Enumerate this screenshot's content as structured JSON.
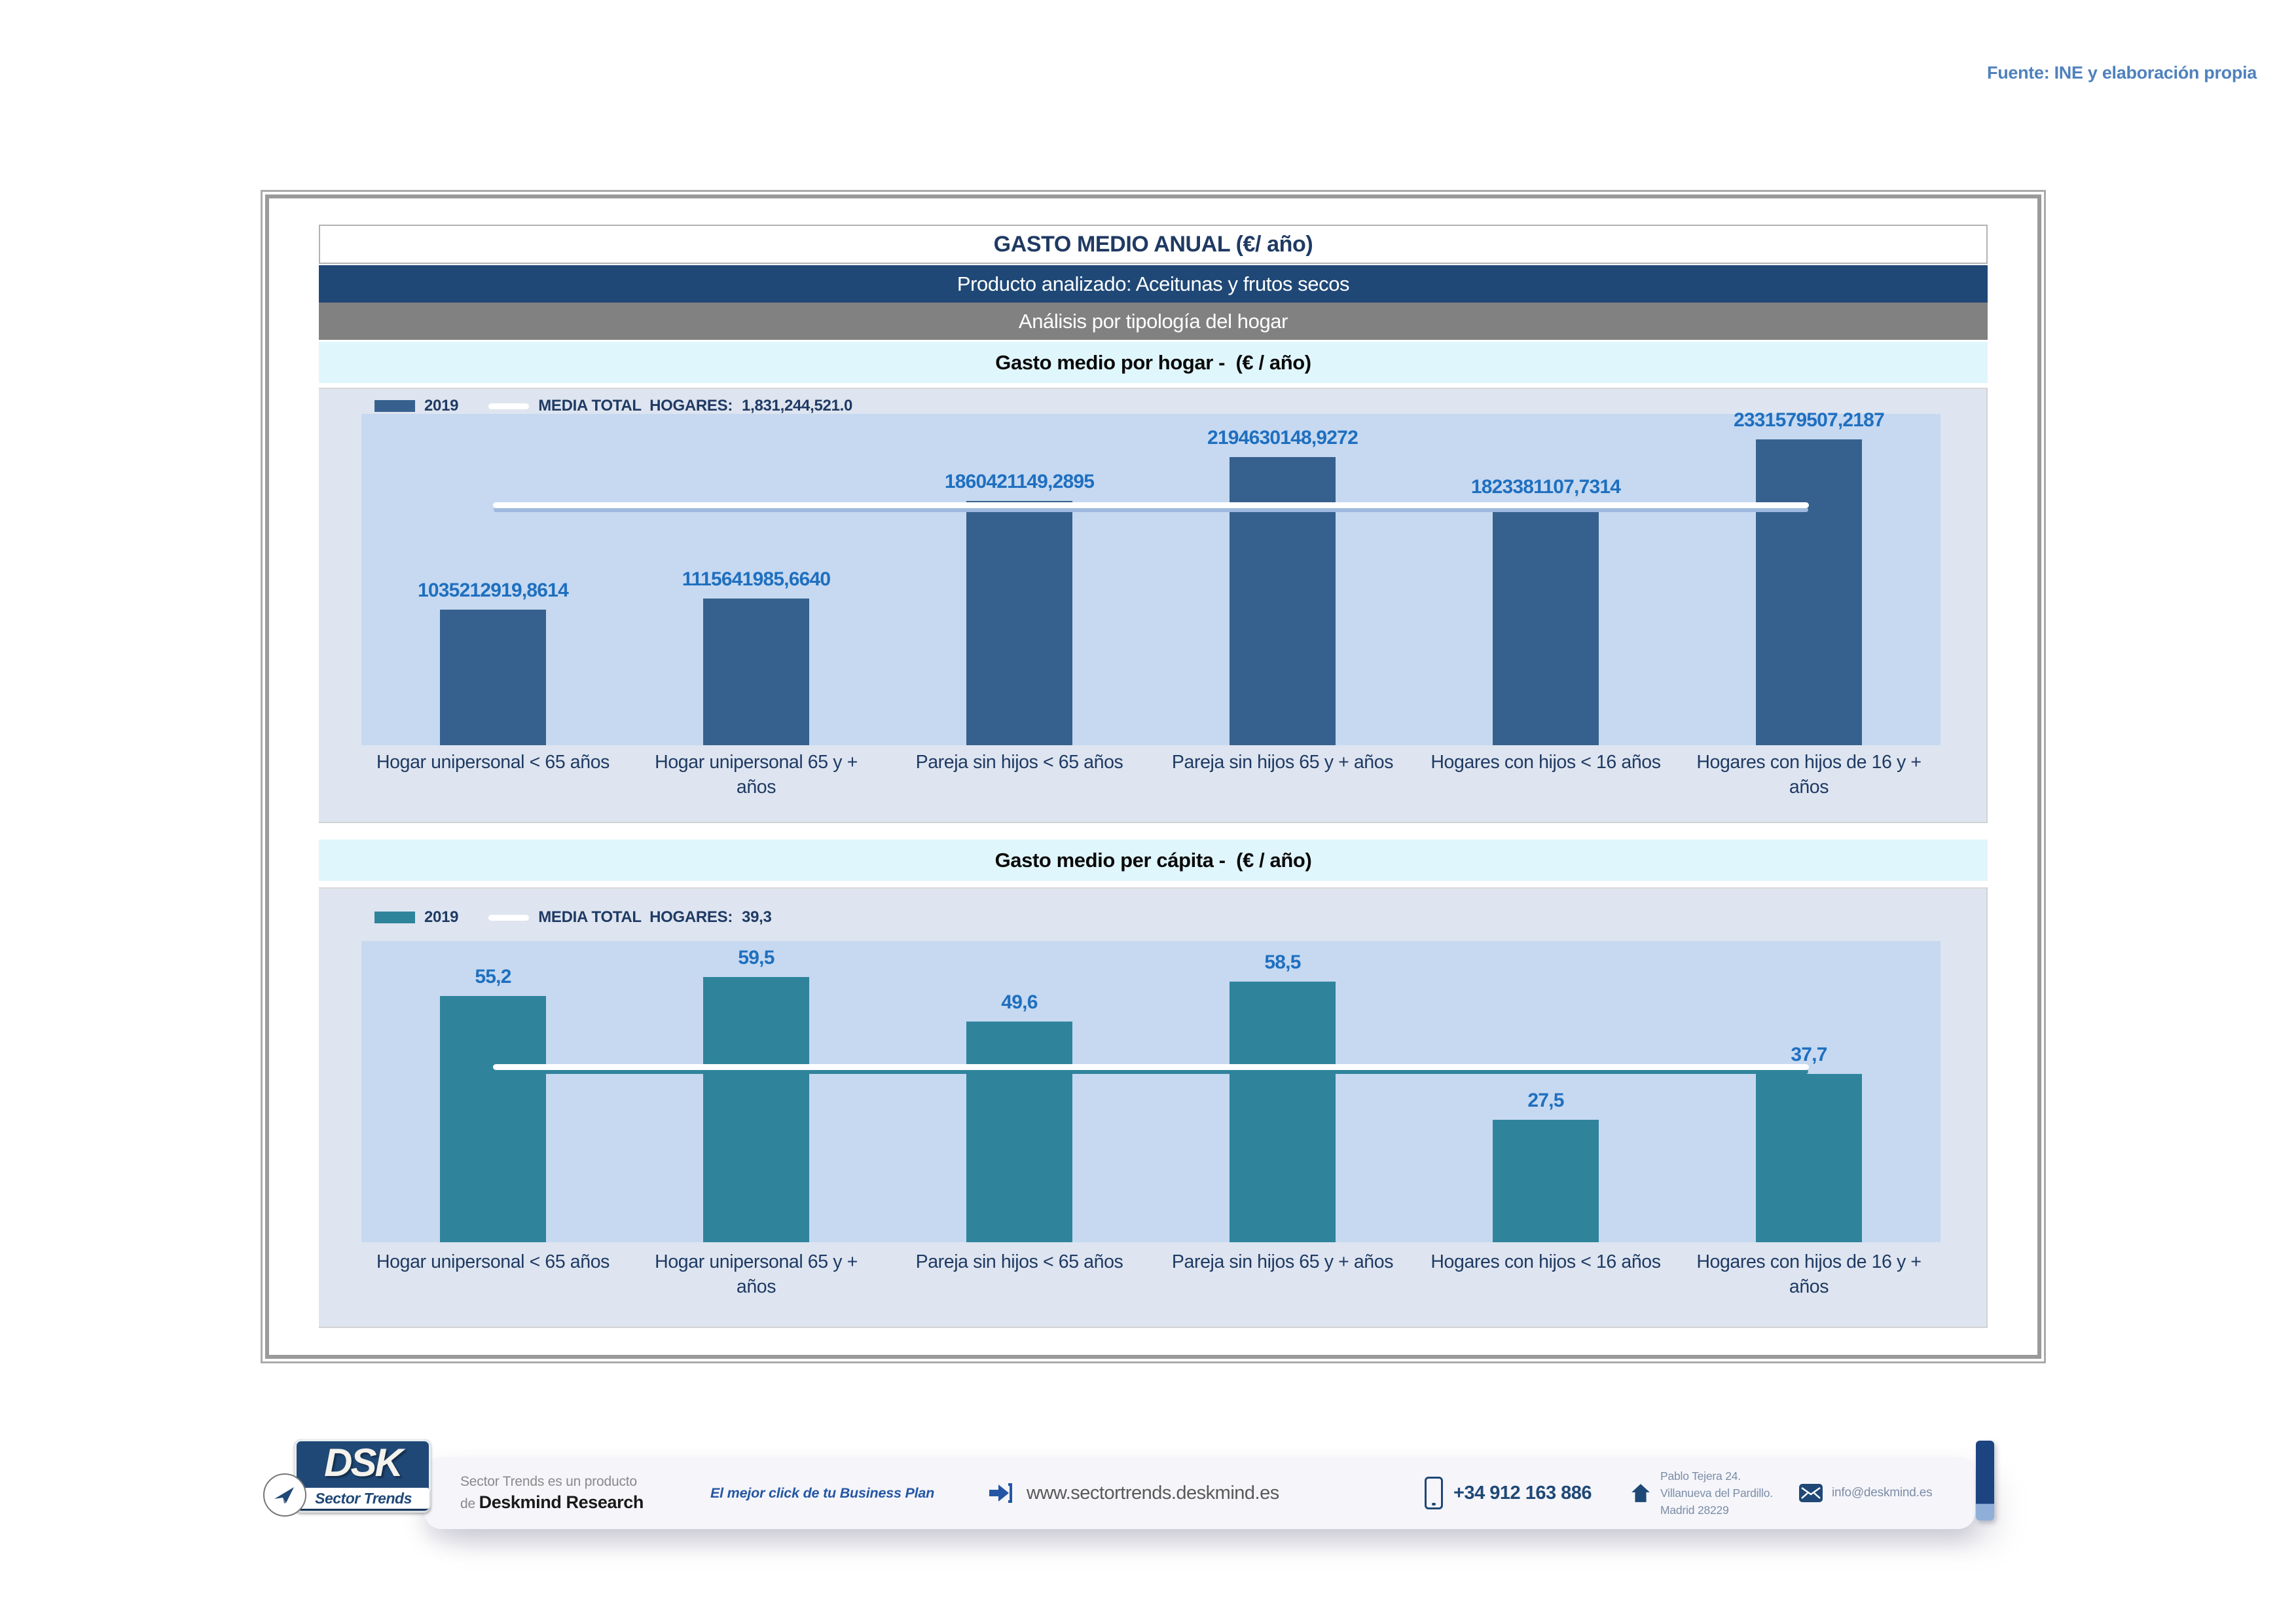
{
  "source_note": "Fuente: INE y elaboración propia",
  "header": {
    "title": "GASTO MEDIO ANUAL (€/ año)",
    "product_banner": "Producto analizado: Aceitunas y frutos secos",
    "analysis_banner": "Análisis por tipología del hogar"
  },
  "chart_data": [
    {
      "type": "bar",
      "section_title": "Gasto medio por hogar -  (€ / año)",
      "legend_year": "2019",
      "legend_media_label": "MEDIA TOTAL  HOGARES:",
      "legend_media_value": "1,831,244,521.0",
      "categories": [
        "Hogar unipersonal < 65 años",
        "Hogar unipersonal  65 y +\naños",
        "Pareja sin hijos < 65 años",
        "Pareja sin hijos 65 y + años",
        "Hogares con hijos < 16 años",
        "Hogares con hijos de 16 y +\naños"
      ],
      "values": [
        1035212919.8614,
        1115641985.664,
        1860421149.2895,
        2194630148.9272,
        1823381107.7314,
        2331579507.2187
      ],
      "value_labels": [
        "1035212919,8614",
        "1115641985,6640",
        "1860421149,2895",
        "2194630148,9272",
        "1823381107,7314",
        "2331579507,2187"
      ],
      "mean": 1831244521.0,
      "ylim": [
        0,
        2525000000
      ],
      "grid": false,
      "legend_position": "top-left",
      "bar_color": "#36618E",
      "media_line_color": "#FFFFFF",
      "media_line_shadow": "#9FB9DE",
      "value_label_color": "#1F6FBF"
    },
    {
      "type": "bar",
      "section_title": "Gasto medio per cápita -  (€ / año)",
      "legend_year": "2019",
      "legend_media_label": "MEDIA TOTAL  HOGARES:",
      "legend_media_value": "39,3",
      "categories": [
        "Hogar unipersonal < 65 años",
        "Hogar unipersonal  65 y +\naños",
        "Pareja sin hijos < 65 años",
        "Pareja sin hijos 65 y + años",
        "Hogares con hijos < 16 años",
        "Hogares con hijos de 16 y +\naños"
      ],
      "values": [
        55.2,
        59.5,
        49.6,
        58.5,
        27.5,
        37.7
      ],
      "value_labels": [
        "55,2",
        "59,5",
        "49,6",
        "58,5",
        "27,5",
        "37,7"
      ],
      "mean": 39.3,
      "ylim": [
        0,
        67.6
      ],
      "grid": false,
      "legend_position": "top-left",
      "bar_color": "#2F849C",
      "media_line_color": "#FFFFFF",
      "media_line_shadow": "#2F849C",
      "value_label_color": "#1F6FBF"
    }
  ],
  "footer": {
    "logo_main": "DSK",
    "logo_sub": "Sector Trends",
    "credit_line1": "Sector Trends es un producto",
    "credit_prefix": "de ",
    "credit_bold": "Deskmind Research",
    "tagline": "El mejor click de tu Business Plan",
    "website": "www.sectortrends.deskmind.es",
    "phone": "+34 912 163 886",
    "address_line1": "Pablo Tejera 24.",
    "address_line2": "Villanueva del Pardillo.",
    "address_line3": "Madrid 28229",
    "email": "info@deskmind.es"
  },
  "colors": {
    "banner_navy": "#1F4876",
    "banner_gray": "#818181",
    "banner_cyan": "#E0F6FD",
    "chart_bg": "#DEE5F0",
    "plot_bg": "#C6D9F1",
    "source_note_blue": "#4F81BD",
    "text_navy": "#1F3A63",
    "ribbon_navy": "#1B4480"
  }
}
